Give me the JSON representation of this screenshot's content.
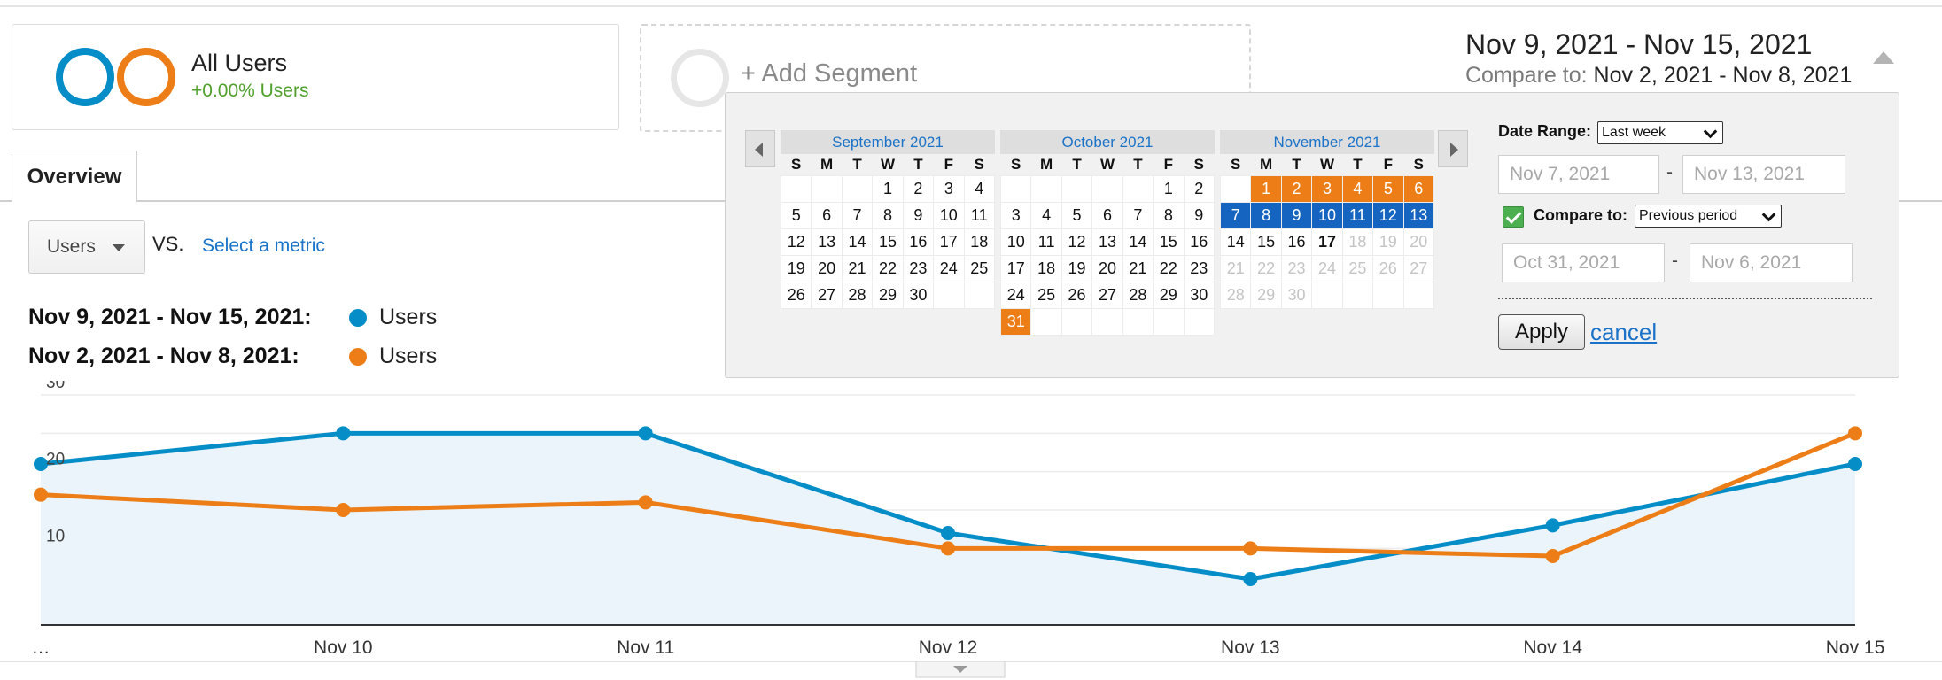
{
  "segments": {
    "all_users": {
      "title": "All Users",
      "subtitle": "+0.00% Users"
    },
    "add_segment_label": "+ Add Segment"
  },
  "date_range": {
    "main": "Nov 9, 2021 - Nov 15, 2021",
    "compare_label": "Compare to:",
    "compare_value": "Nov 2, 2021 - Nov 8, 2021"
  },
  "tabs": {
    "overview": "Overview"
  },
  "metric_bar": {
    "metric": "Users",
    "vs": "VS.",
    "select_metric": "Select a metric"
  },
  "legend": [
    {
      "range": "Nov 9, 2021 - Nov 15, 2021:",
      "series": "Users",
      "color": "#058dc7"
    },
    {
      "range": "Nov 2, 2021 - Nov 8, 2021:",
      "series": "Users",
      "color": "#ed7e17"
    }
  ],
  "calendar": {
    "weekdays": [
      "S",
      "M",
      "T",
      "W",
      "T",
      "F",
      "S"
    ],
    "months": [
      {
        "name": "September 2021",
        "first_weekday": 3,
        "days": 30
      },
      {
        "name": "October 2021",
        "first_weekday": 5,
        "days": 31
      },
      {
        "name": "November 2021",
        "first_weekday": 1,
        "days": 30
      }
    ],
    "compare_range": {
      "start": "2021-10-31",
      "end": "2021-11-06"
    },
    "selected_range": {
      "start": "2021-11-07",
      "end": "2021-11-13"
    },
    "today": "2021-11-17",
    "date_range_label": "Date Range:",
    "date_range_option": "Last week",
    "start_date": "Nov 7, 2021",
    "end_date": "Nov 13, 2021",
    "compare_to_label": "Compare to:",
    "compare_to_option": "Previous period",
    "compare_start": "Oct 31, 2021",
    "compare_end": "Nov 6, 2021",
    "compare_checked": true,
    "dash": "-",
    "apply": "Apply",
    "cancel": "cancel"
  },
  "chart_data": {
    "type": "line",
    "x": [
      "…",
      "Nov 10",
      "Nov 11",
      "Nov 12",
      "Nov 13",
      "Nov 14",
      "Nov 15"
    ],
    "series": [
      {
        "name": "Users",
        "color": "#058dc7",
        "values": [
          21,
          25,
          25,
          12,
          6,
          13,
          21
        ]
      },
      {
        "name": "Users",
        "color": "#ed7e17",
        "values": [
          17,
          15,
          16,
          10,
          10,
          9,
          25
        ]
      }
    ],
    "yticks": [
      10,
      20,
      30
    ],
    "ylim": [
      0,
      30
    ],
    "grid": true,
    "area_fill": true
  }
}
